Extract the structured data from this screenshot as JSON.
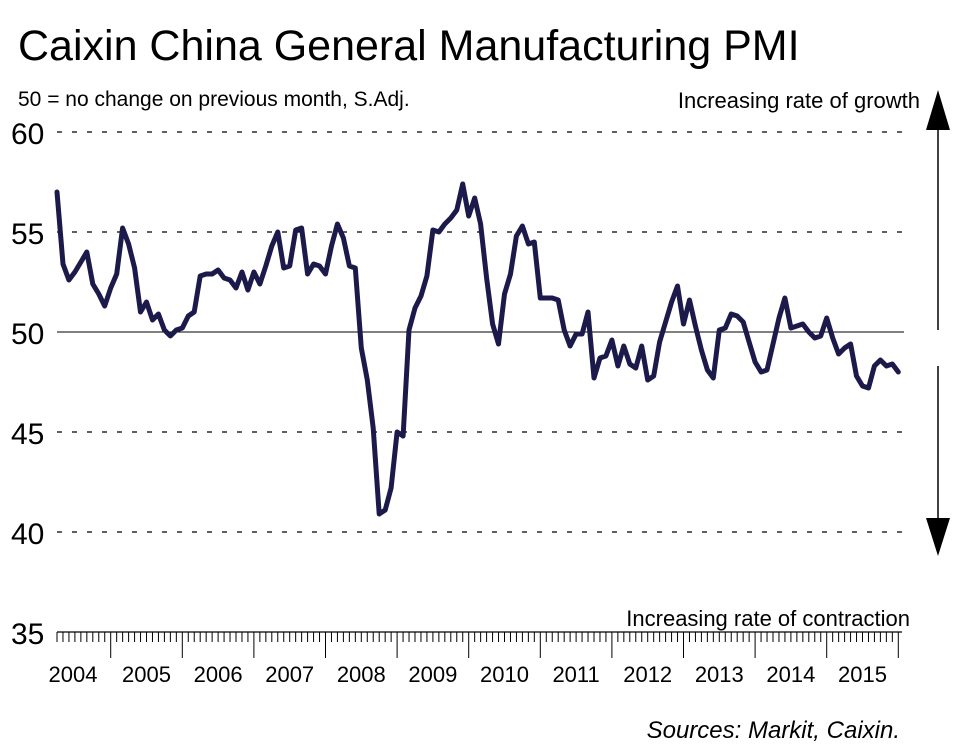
{
  "chart_data": {
    "type": "line",
    "title": "Caixin China General Manufacturing PMI",
    "subtitle": "50 = no change on previous month, S.Adj.",
    "annotation_top": "Increasing rate of growth",
    "annotation_bottom": "Increasing rate of contraction",
    "source": "Sources: Markit, Caixin.",
    "ylim": [
      35,
      60
    ],
    "yticks": [
      "60",
      "55",
      "50",
      "45",
      "40",
      "35"
    ],
    "reference_value": 50,
    "grid": "dashed horizontal",
    "x_start": {
      "year": 2004,
      "month": 4
    },
    "x_range_years": [
      2004,
      2016
    ],
    "year_labels": [
      "2004",
      "2005",
      "2006",
      "2007",
      "2008",
      "2009",
      "2010",
      "2011",
      "2012",
      "2013",
      "2014",
      "2015"
    ],
    "series": [
      {
        "name": "PMI",
        "color": "#1c1a4a",
        "values": [
          57.0,
          53.4,
          52.6,
          53.0,
          53.5,
          54.0,
          52.4,
          51.9,
          51.3,
          52.2,
          52.9,
          55.2,
          54.4,
          53.2,
          51.0,
          51.5,
          50.6,
          50.9,
          50.1,
          49.8,
          50.1,
          50.2,
          50.8,
          51.0,
          52.8,
          52.9,
          52.9,
          53.1,
          52.7,
          52.6,
          52.2,
          53.0,
          52.1,
          53.0,
          52.4,
          53.3,
          54.3,
          55.0,
          53.2,
          53.3,
          55.1,
          55.2,
          52.9,
          53.4,
          53.3,
          52.9,
          54.3,
          55.4,
          54.7,
          53.3,
          53.2,
          49.2,
          47.6,
          45.2,
          40.9,
          41.1,
          42.2,
          45.0,
          44.8,
          50.1,
          51.2,
          51.8,
          52.8,
          55.1,
          55.0,
          55.4,
          55.7,
          56.1,
          57.4,
          55.8,
          56.7,
          55.4,
          52.7,
          50.4,
          49.4,
          51.9,
          52.9,
          54.8,
          55.3,
          54.4,
          54.5,
          51.7,
          51.7,
          51.7,
          51.6,
          50.1,
          49.3,
          49.9,
          49.9,
          51.0,
          47.7,
          48.7,
          48.8,
          49.6,
          48.3,
          49.3,
          48.4,
          48.2,
          49.3,
          47.6,
          47.8,
          49.5,
          50.5,
          51.5,
          52.3,
          50.4,
          51.6,
          50.3,
          49.1,
          48.1,
          47.7,
          50.1,
          50.2,
          50.9,
          50.8,
          50.5,
          49.5,
          48.5,
          48.0,
          48.1,
          49.4,
          50.7,
          51.7,
          50.2,
          50.3,
          50.4,
          50.0,
          49.7,
          49.8,
          50.7,
          49.7,
          48.9,
          49.2,
          49.4,
          47.8,
          47.3,
          47.2,
          48.3,
          48.6,
          48.3,
          48.4,
          48.0
        ]
      }
    ]
  }
}
